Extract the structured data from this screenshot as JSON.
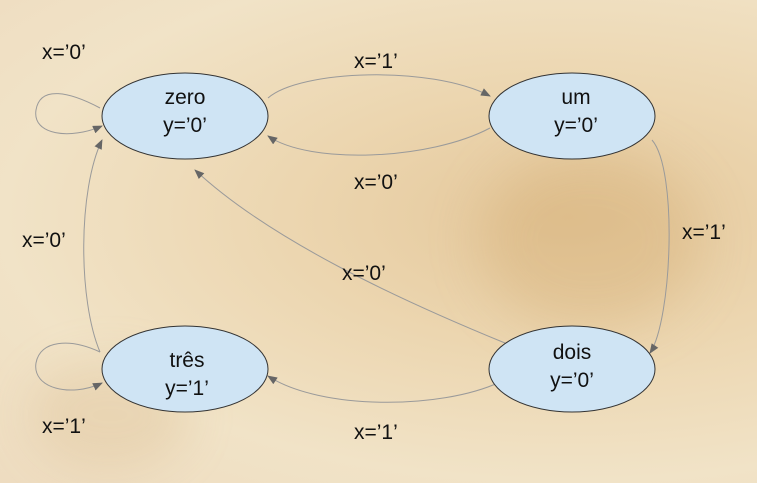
{
  "states": {
    "zero": {
      "name": "zero",
      "output": "y=’0’"
    },
    "um": {
      "name": "um",
      "output": "y=’0’"
    },
    "dois": {
      "name": "dois",
      "output": "y=’0’"
    },
    "tres": {
      "name": "três",
      "output": "y=’1’"
    }
  },
  "transitions": {
    "zero_self": "x=’0’",
    "zero_to_um": "x=’1’",
    "um_to_zero": "x=’0’",
    "um_to_dois": "x=’1’",
    "dois_to_zero": "x=’0’",
    "dois_to_tres": "x=’1’",
    "tres_to_zero": "x=’0’",
    "tres_self": "x=’1’"
  }
}
